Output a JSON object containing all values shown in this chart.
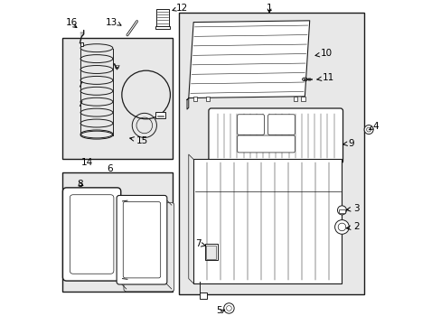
{
  "bg_color": "#ffffff",
  "bg_gray": "#e8e8e8",
  "line_color": "#1a1a1a",
  "boxes": {
    "14": [
      0.01,
      0.115,
      0.35,
      0.49
    ],
    "6": [
      0.01,
      0.53,
      0.35,
      0.9
    ],
    "1": [
      0.37,
      0.035,
      0.945,
      0.91
    ]
  },
  "labels": {
    "1": [
      0.65,
      0.02,
      "center"
    ],
    "2": [
      0.905,
      0.7,
      "left"
    ],
    "3": [
      0.905,
      0.645,
      "left"
    ],
    "4": [
      0.97,
      0.39,
      "left"
    ],
    "5": [
      0.505,
      0.96,
      "right"
    ],
    "6": [
      0.155,
      0.52,
      "center"
    ],
    "7": [
      0.443,
      0.752,
      "right"
    ],
    "8": [
      0.055,
      0.57,
      "left"
    ],
    "9": [
      0.89,
      0.44,
      "left"
    ],
    "10": [
      0.805,
      0.165,
      "left"
    ],
    "11": [
      0.81,
      0.24,
      "left"
    ],
    "12": [
      0.36,
      0.022,
      "left"
    ],
    "13": [
      0.185,
      0.068,
      "right"
    ],
    "14": [
      0.085,
      0.5,
      "center"
    ],
    "15": [
      0.235,
      0.43,
      "left"
    ],
    "16": [
      0.02,
      0.068,
      "left"
    ]
  }
}
